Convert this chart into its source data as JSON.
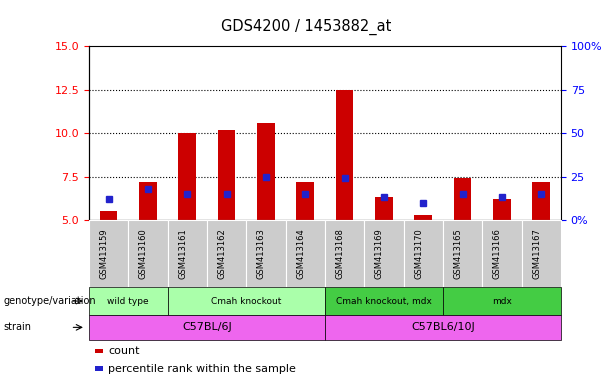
{
  "title": "GDS4200 / 1453882_at",
  "samples": [
    "GSM413159",
    "GSM413160",
    "GSM413161",
    "GSM413162",
    "GSM413163",
    "GSM413164",
    "GSM413168",
    "GSM413169",
    "GSM413170",
    "GSM413165",
    "GSM413166",
    "GSM413167"
  ],
  "red_values": [
    5.5,
    7.2,
    10.0,
    10.2,
    10.6,
    7.2,
    12.5,
    6.3,
    5.3,
    7.4,
    6.2,
    7.2
  ],
  "blue_values": [
    6.2,
    6.8,
    6.5,
    6.5,
    7.5,
    6.5,
    7.4,
    6.3,
    6.0,
    6.5,
    6.3,
    6.5
  ],
  "y_min": 5.0,
  "y_max": 15.0,
  "y_ticks_left": [
    5.0,
    7.5,
    10.0,
    12.5,
    15.0
  ],
  "y_ticks_right": [
    0,
    25,
    50,
    75,
    100
  ],
  "y_right_labels": [
    "0%",
    "25",
    "50",
    "75",
    "100%"
  ],
  "red_color": "#cc0000",
  "blue_color": "#2222cc",
  "genotype_groups": [
    {
      "label": "wild type",
      "start": 0,
      "end": 1,
      "color": "#aaffaa"
    },
    {
      "label": "Cmah knockout",
      "start": 2,
      "end": 5,
      "color": "#aaffaa"
    },
    {
      "label": "Cmah knockout, mdx",
      "start": 6,
      "end": 8,
      "color": "#44cc44"
    },
    {
      "label": "mdx",
      "start": 9,
      "end": 11,
      "color": "#44cc44"
    }
  ],
  "strain_groups": [
    {
      "label": "C57BL/6J",
      "start": 0,
      "end": 5,
      "color": "#ee66ee"
    },
    {
      "label": "C57BL6/10J",
      "start": 6,
      "end": 11,
      "color": "#ee66ee"
    }
  ],
  "genotype_label": "genotype/variation",
  "strain_label": "strain",
  "legend_count": "count",
  "legend_percentile": "percentile rank within the sample",
  "tick_bg_color": "#cccccc"
}
